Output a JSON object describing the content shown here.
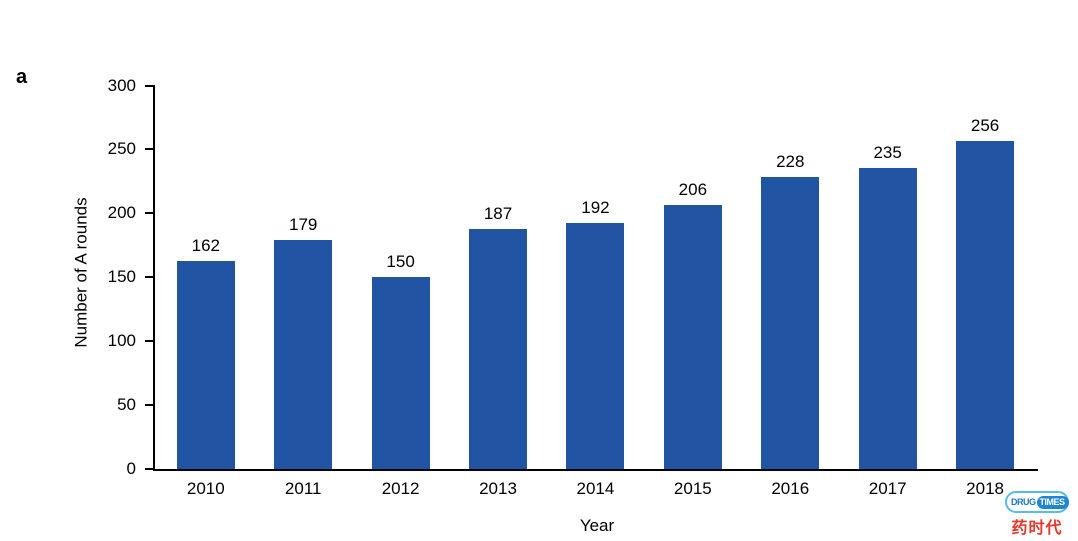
{
  "panel_label": "a",
  "chart_data": {
    "type": "bar",
    "categories": [
      "2010",
      "2011",
      "2012",
      "2013",
      "2014",
      "2015",
      "2016",
      "2017",
      "2018"
    ],
    "values": [
      162,
      179,
      150,
      187,
      192,
      206,
      228,
      235,
      256
    ],
    "title": "",
    "xlabel": "Year",
    "ylabel": "Number of A rounds",
    "ylim": [
      0,
      300
    ],
    "yticks": [
      0,
      50,
      100,
      150,
      200,
      250,
      300
    ],
    "bar_color": "#2155a4",
    "axis_color": "#000000",
    "grid": false,
    "legend": "none",
    "data_labels": true
  },
  "watermark": {
    "name": "drugtimes-logo",
    "line1_left": "DRUG",
    "line1_right": "TIMES",
    "line2": "药时代",
    "pill_border_color": "#56bce8",
    "drug_text_color": "#1a78c8",
    "times_bg_color": "#1e86d2",
    "chinese_color": "#e2382d"
  }
}
